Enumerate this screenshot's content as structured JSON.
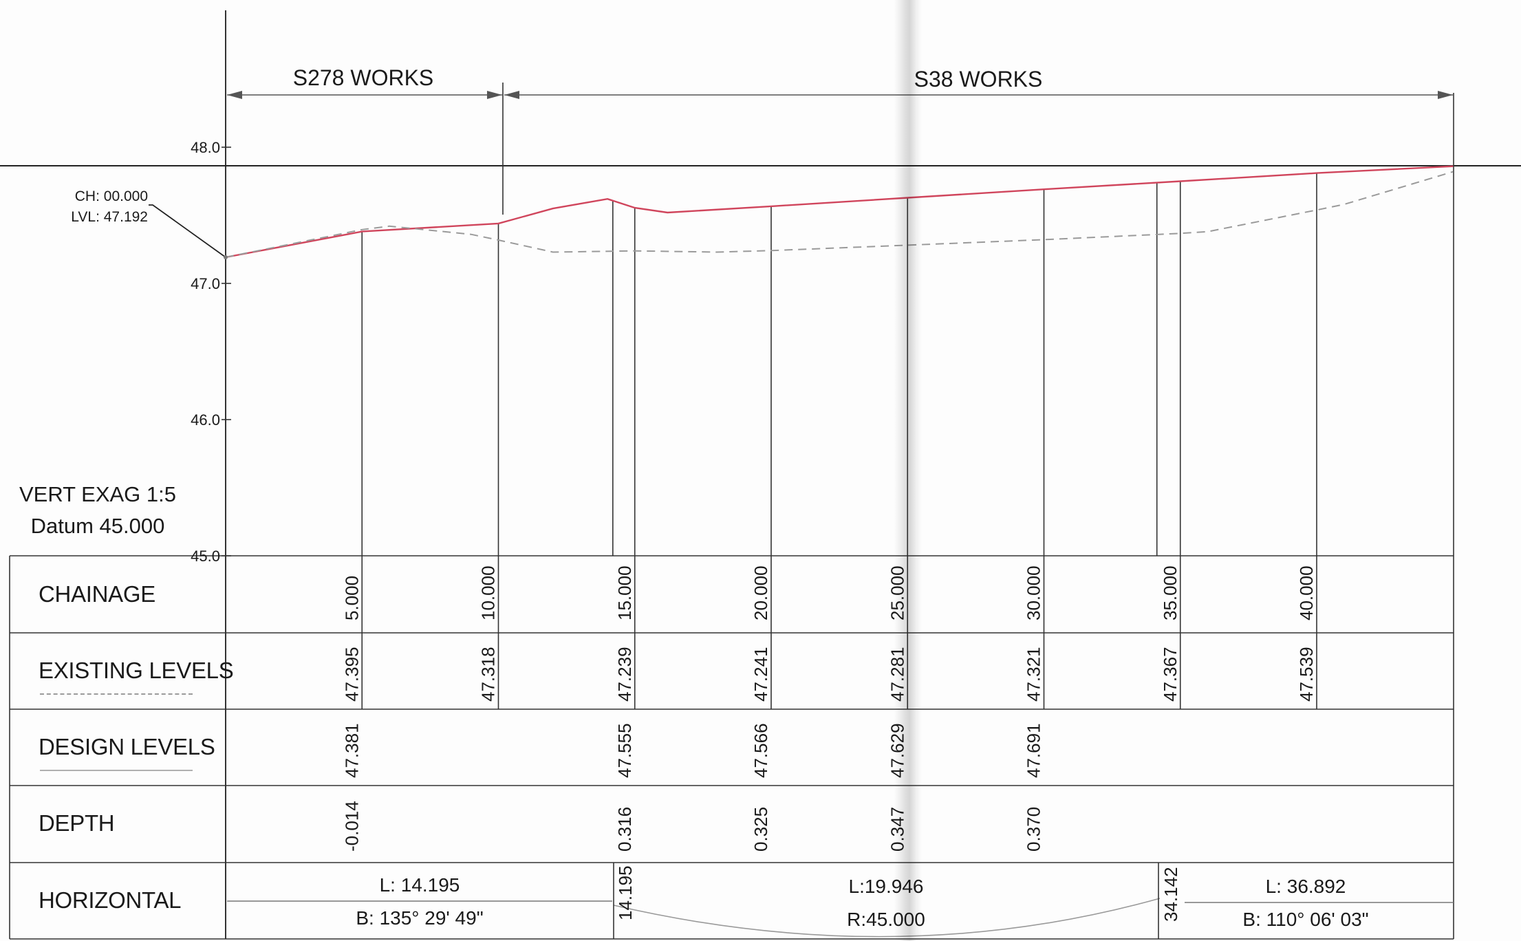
{
  "works": {
    "s278_label": "S278 WORKS",
    "s38_label": "S38 WORKS"
  },
  "start_note": {
    "chainage": "CH: 00.000",
    "level": "LVL: 47.192"
  },
  "notes": {
    "vert_exag": "VERT EXAG  1:5",
    "datum": "Datum 45.000"
  },
  "level_axis": {
    "ticks": [
      {
        "value": 48.0,
        "label": "48.0"
      },
      {
        "value": 47.0,
        "label": "47.0"
      },
      {
        "value": 46.0,
        "label": "46.0"
      },
      {
        "value": 45.0,
        "label": "45.0"
      }
    ]
  },
  "table": {
    "rows": {
      "chainage": "CHAINAGE",
      "existing": "EXISTING LEVELS",
      "design": "DESIGN LEVELS",
      "depth": "DEPTH",
      "horizontal": "HORIZONTAL"
    },
    "stations": [
      {
        "ch": 5,
        "chainage": "5.000",
        "existing": "47.395",
        "design": "47.381",
        "depth": "-0.014"
      },
      {
        "ch": 10,
        "chainage": "10.000",
        "existing": "47.318",
        "design": "",
        "depth": ""
      },
      {
        "ch": 15,
        "chainage": "15.000",
        "existing": "47.239",
        "design": "47.555",
        "depth": "0.316"
      },
      {
        "ch": 20,
        "chainage": "20.000",
        "existing": "47.241",
        "design": "47.566",
        "depth": "0.325"
      },
      {
        "ch": 25,
        "chainage": "25.000",
        "existing": "47.281",
        "design": "47.629",
        "depth": "0.347"
      },
      {
        "ch": 30,
        "chainage": "30.000",
        "existing": "47.321",
        "design": "47.691",
        "depth": "0.370"
      },
      {
        "ch": 35,
        "chainage": "35.000",
        "existing": "47.367",
        "design": "",
        "depth": ""
      },
      {
        "ch": 40,
        "chainage": "40.000",
        "existing": "47.539",
        "design": "",
        "depth": ""
      }
    ],
    "horizontal": {
      "seg1_length": "L: 14.195",
      "seg1_bearing": "B: 135° 29' 49\"",
      "ip1": "14.195",
      "curve_length": "L:19.946",
      "curve_radius": "R:45.000",
      "ip2": "34.142",
      "seg2_length": "L: 36.892",
      "seg2_bearing": "B: 110° 06' 03\""
    }
  },
  "chart_data": {
    "type": "line",
    "title": "",
    "xlabel": "",
    "ylabel": "",
    "ylim": [
      45.0,
      48.0
    ],
    "xlim": [
      0,
      45
    ],
    "series": [
      {
        "name": "DESIGN LEVELS",
        "color": "#d0455c",
        "style": "solid",
        "x": [
          0,
          5,
          10,
          12,
          14,
          15,
          16.2,
          20,
          25,
          30,
          35,
          40,
          45
        ],
        "y": [
          47.192,
          47.381,
          47.44,
          47.55,
          47.62,
          47.555,
          47.52,
          47.566,
          47.629,
          47.691,
          47.75,
          47.81,
          47.86
        ]
      },
      {
        "name": "EXISTING LEVELS",
        "color": "#9a9a9a",
        "style": "dashed",
        "x": [
          0,
          5,
          6,
          9,
          10,
          12,
          15,
          18,
          20,
          25,
          30,
          35,
          36,
          40,
          41,
          45
        ],
        "y": [
          47.192,
          47.395,
          47.42,
          47.36,
          47.318,
          47.23,
          47.239,
          47.23,
          47.241,
          47.281,
          47.321,
          47.367,
          47.38,
          47.539,
          47.58,
          47.82
        ]
      }
    ],
    "stations_x": [
      5,
      10,
      15,
      20,
      25,
      30,
      35,
      40
    ],
    "ips_x": [
      14.195,
      34.142
    ]
  }
}
